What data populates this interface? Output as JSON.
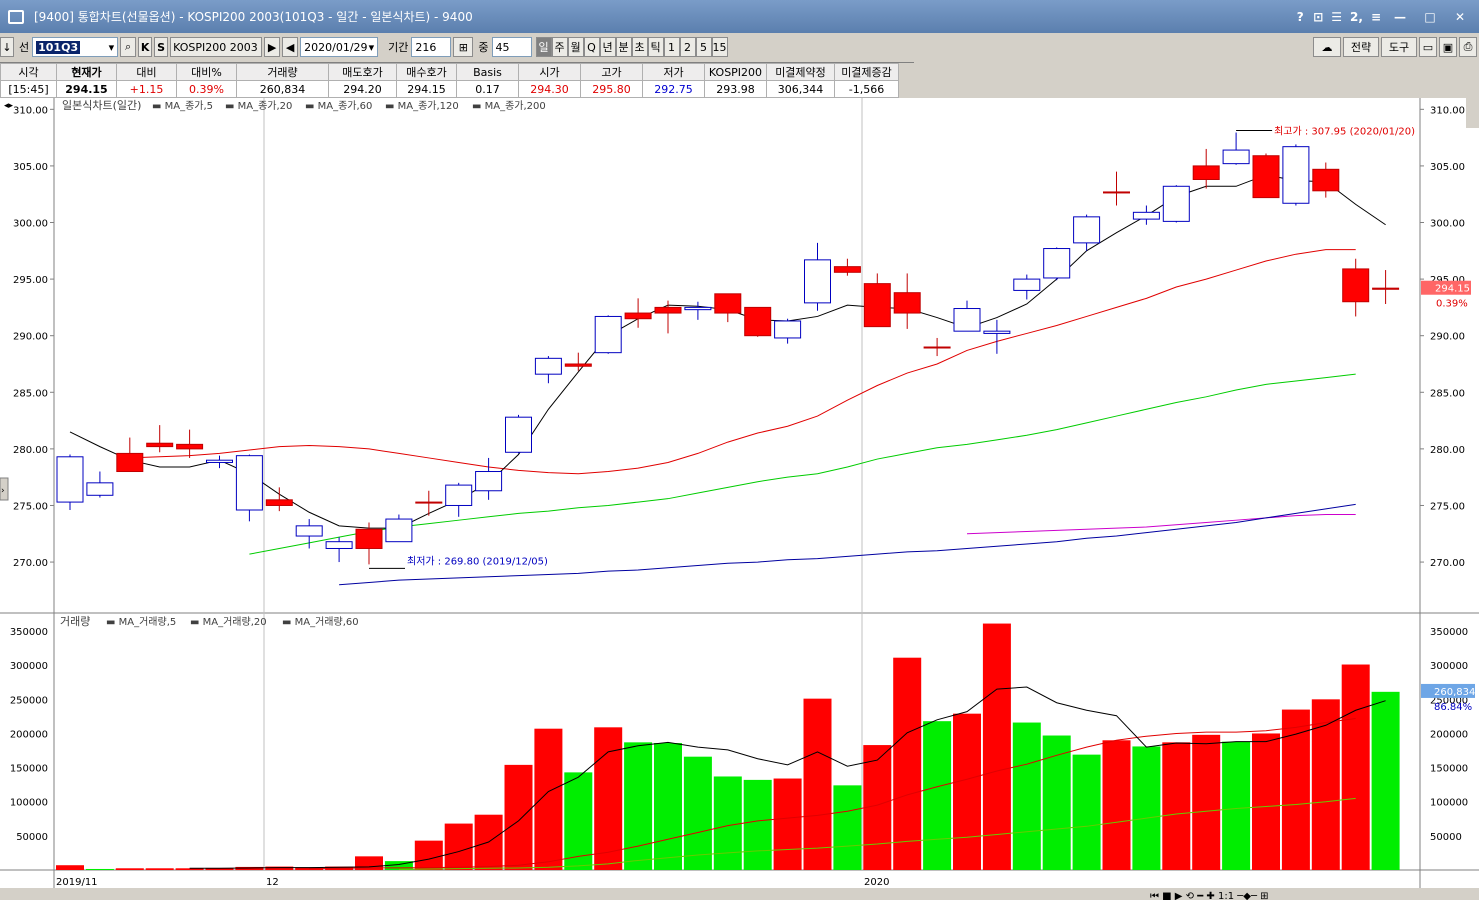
{
  "window": {
    "title": "[9400] 통합차트(선물옵션) - KOSPI200 2003(101Q3 - 일간 - 일본식차트) - 9400",
    "controls": [
      "?",
      "⊡",
      "☰",
      "2,",
      "≡"
    ],
    "win_buttons": [
      "—",
      "□",
      "✕"
    ]
  },
  "toolbar": {
    "arrow": "↓",
    "select_label": "선",
    "code": "101Q3",
    "k": "K",
    "s": "S",
    "name": "KOSPI200 2003",
    "date": "2020/01/29",
    "period_label": "기간",
    "period": "216",
    "mid_label": "중",
    "mid": "45",
    "periods": [
      "일",
      "주",
      "월",
      "Q",
      "년",
      "분",
      "초",
      "틱",
      "1",
      "2",
      "5",
      "15"
    ],
    "active_period": "일",
    "strategy": "전략",
    "tools": "도구"
  },
  "quote_table": {
    "headers": [
      "시각",
      "현재가",
      "대비",
      "대비%",
      "거래량",
      "매도호가",
      "매수호가",
      "Basis",
      "시가",
      "고가",
      "저가",
      "KOSPI200",
      "미결제약정",
      "미결제증감"
    ],
    "values": [
      "[15:45]",
      "294.15",
      "+1.15",
      "0.39%",
      "260,834",
      "294.20",
      "294.15",
      "0.17",
      "294.30",
      "295.80",
      "292.75",
      "293.98",
      "306,344",
      "-1,566"
    ]
  },
  "price_legend": {
    "title": "일본식차트(일간)",
    "ma": [
      "MA_종가,5",
      "MA_종가,20",
      "MA_종가,60",
      "MA_종가,120",
      "MA_종가,200"
    ],
    "colors": [
      "#000000",
      "#e00000",
      "#00cc00",
      "#0000a0",
      "#cc00cc"
    ]
  },
  "volume_legend": {
    "title": "거래량",
    "ma": [
      "MA_거래량,5",
      "MA_거래량,20",
      "MA_거래량,60"
    ],
    "colors": [
      "#000000",
      "#e00000",
      "#66cc00"
    ]
  },
  "annotations": {
    "high": "최고가 : 307.95 (2020/01/20)",
    "low": "최저가 : 269.80 (2019/12/05)"
  },
  "current": {
    "price": "294.15",
    "pct": "0.39%",
    "volume": "260,834",
    "vol_pct": "86.84%"
  },
  "x_labels": [
    "2019/11",
    "12",
    "2020"
  ],
  "chart_data": [
    {
      "type": "candlestick",
      "y_ticks": [
        270,
        275,
        280,
        285,
        290,
        295,
        300,
        305,
        310
      ],
      "ylim": [
        265.5,
        311
      ],
      "candles": [
        {
          "o": 279.3,
          "h": 279.5,
          "l": 274.6,
          "c": 275.3
        },
        {
          "o": 277.0,
          "h": 278.0,
          "l": 275.7,
          "c": 275.9
        },
        {
          "o": 278.0,
          "h": 281.0,
          "l": 278.0,
          "c": 279.6
        },
        {
          "o": 280.2,
          "h": 282.1,
          "l": 279.7,
          "c": 280.5
        },
        {
          "o": 280.0,
          "h": 281.7,
          "l": 279.2,
          "c": 280.4
        },
        {
          "o": 279.0,
          "h": 279.4,
          "l": 278.3,
          "c": 278.8
        },
        {
          "o": 279.4,
          "h": 279.5,
          "l": 273.6,
          "c": 274.6
        },
        {
          "o": 275.0,
          "h": 276.6,
          "l": 274.5,
          "c": 275.5
        },
        {
          "o": 273.2,
          "h": 273.8,
          "l": 271.2,
          "c": 272.3
        },
        {
          "o": 271.8,
          "h": 272.2,
          "l": 270.0,
          "c": 271.2
        },
        {
          "o": 271.2,
          "h": 273.5,
          "l": 269.8,
          "c": 272.9
        },
        {
          "o": 273.8,
          "h": 274.2,
          "l": 271.8,
          "c": 271.8
        },
        {
          "o": 275.3,
          "h": 276.3,
          "l": 274.1,
          "c": 275.3
        },
        {
          "o": 276.8,
          "h": 277.0,
          "l": 274.0,
          "c": 275.0
        },
        {
          "o": 278.0,
          "h": 279.2,
          "l": 275.5,
          "c": 276.3
        },
        {
          "o": 282.8,
          "h": 283.0,
          "l": 279.6,
          "c": 279.7
        },
        {
          "o": 288.0,
          "h": 288.2,
          "l": 285.8,
          "c": 286.6
        },
        {
          "o": 287.3,
          "h": 288.5,
          "l": 286.9,
          "c": 287.5
        },
        {
          "o": 291.7,
          "h": 291.8,
          "l": 288.4,
          "c": 288.5
        },
        {
          "o": 291.5,
          "h": 293.3,
          "l": 290.7,
          "c": 292.0
        },
        {
          "o": 292.0,
          "h": 293.1,
          "l": 290.2,
          "c": 292.5
        },
        {
          "o": 292.5,
          "h": 293.0,
          "l": 291.4,
          "c": 292.3
        },
        {
          "o": 292.0,
          "h": 293.7,
          "l": 291.2,
          "c": 293.7
        },
        {
          "o": 290.0,
          "h": 292.5,
          "l": 289.9,
          "c": 292.5
        },
        {
          "o": 291.3,
          "h": 291.5,
          "l": 289.3,
          "c": 289.8
        },
        {
          "o": 296.7,
          "h": 298.2,
          "l": 292.2,
          "c": 292.9
        },
        {
          "o": 295.6,
          "h": 296.8,
          "l": 295.3,
          "c": 296.1
        },
        {
          "o": 290.8,
          "h": 295.5,
          "l": 290.8,
          "c": 294.6
        },
        {
          "o": 292.0,
          "h": 295.5,
          "l": 290.6,
          "c": 293.8
        },
        {
          "o": 289.0,
          "h": 289.8,
          "l": 288.2,
          "c": 289.0
        },
        {
          "o": 292.4,
          "h": 293.1,
          "l": 290.4,
          "c": 290.4
        },
        {
          "o": 290.4,
          "h": 291.4,
          "l": 288.4,
          "c": 290.2
        },
        {
          "o": 295.0,
          "h": 295.4,
          "l": 293.2,
          "c": 294.0
        },
        {
          "o": 297.7,
          "h": 297.8,
          "l": 294.9,
          "c": 295.1
        },
        {
          "o": 300.5,
          "h": 300.7,
          "l": 297.5,
          "c": 298.2
        },
        {
          "o": 302.7,
          "h": 304.5,
          "l": 301.5,
          "c": 302.7
        },
        {
          "o": 300.9,
          "h": 301.5,
          "l": 299.8,
          "c": 300.3
        },
        {
          "o": 303.2,
          "h": 303.3,
          "l": 300.0,
          "c": 300.1
        },
        {
          "o": 303.8,
          "h": 306.5,
          "l": 303.0,
          "c": 305.0
        },
        {
          "o": 306.4,
          "h": 307.95,
          "l": 305.1,
          "c": 305.2
        },
        {
          "o": 302.2,
          "h": 306.1,
          "l": 302.2,
          "c": 305.9
        },
        {
          "o": 306.7,
          "h": 306.9,
          "l": 301.5,
          "c": 301.7
        },
        {
          "o": 302.8,
          "h": 305.3,
          "l": 302.2,
          "c": 304.7
        },
        {
          "o": 293.0,
          "h": 296.8,
          "l": 291.7,
          "c": 295.9
        },
        {
          "o": 294.1,
          "h": 295.8,
          "l": 292.8,
          "c": 294.2
        }
      ],
      "ma5": [
        281.5,
        280.2,
        279.0,
        278.4,
        278.4,
        279.0,
        277.8,
        276.0,
        274.4,
        273.2,
        273.0,
        273.0,
        274.3,
        275.5,
        277.0,
        279.5,
        283.5,
        286.8,
        290.0,
        291.5,
        292.7,
        292.6,
        292.3,
        291.4,
        291.3,
        291.7,
        292.7,
        292.5,
        292.4,
        291.6,
        290.7,
        291.6,
        292.8,
        295.0,
        297.5,
        299.1,
        300.6,
        302.3,
        303.2,
        303.2,
        304.2,
        303.7,
        303.6,
        301.6,
        299.8
      ],
      "ma20": [
        279.2,
        279.3,
        279.4,
        279.6,
        279.9,
        280.2,
        280.3,
        280.2,
        280.0,
        279.6,
        279.2,
        278.8,
        278.4,
        278.1,
        277.9,
        277.8,
        278.0,
        278.3,
        278.8,
        279.6,
        280.6,
        281.4,
        282.0,
        282.9,
        284.3,
        285.6,
        286.7,
        287.5,
        288.7,
        289.5,
        290.2,
        290.9,
        291.7,
        292.5,
        293.3,
        294.3,
        295.0,
        295.8,
        296.6,
        297.2,
        297.6,
        297.6
      ],
      "ma60": [
        270.7,
        271.2,
        271.7,
        272.2,
        272.7,
        273.1,
        273.4,
        273.7,
        274.0,
        274.3,
        274.5,
        274.8,
        275.0,
        275.3,
        275.6,
        276.1,
        276.6,
        277.1,
        277.5,
        277.8,
        278.4,
        279.1,
        279.6,
        280.1,
        280.4,
        280.8,
        281.2,
        281.7,
        282.3,
        282.9,
        283.5,
        284.1,
        284.6,
        285.2,
        285.7,
        286.0,
        286.3,
        286.6
      ],
      "ma120": [
        268.0,
        268.2,
        268.4,
        268.5,
        268.6,
        268.7,
        268.8,
        268.9,
        269.0,
        269.2,
        269.3,
        269.5,
        269.7,
        269.9,
        270.0,
        270.2,
        270.3,
        270.5,
        270.7,
        270.9,
        271.0,
        271.2,
        271.4,
        271.6,
        271.8,
        272.1,
        272.3,
        272.6,
        272.9,
        273.2,
        273.5,
        273.9,
        274.3,
        274.7,
        275.1
      ],
      "ma200": [
        272.5,
        272.6,
        272.7,
        272.8,
        272.9,
        273.0,
        273.1,
        273.3,
        273.5,
        273.7,
        273.9,
        274.1,
        274.2,
        274.2
      ]
    },
    {
      "type": "bar",
      "y_ticks": [
        50000,
        100000,
        150000,
        200000,
        250000,
        300000,
        350000
      ],
      "ylim": [
        0,
        375000
      ],
      "values": [
        7000,
        1500,
        2500,
        2500,
        2500,
        3000,
        4500,
        5000,
        4000,
        5000,
        20000,
        13000,
        43000,
        68000,
        81000,
        154000,
        207000,
        143000,
        209000,
        187000,
        186000,
        166000,
        137000,
        132000,
        134000,
        251000,
        124000,
        183000,
        311000,
        218000,
        229000,
        361000,
        216000,
        197000,
        169000,
        190000,
        181000,
        187000,
        198000,
        188000,
        200000,
        235000,
        250000,
        301000,
        261000
      ],
      "up": [
        true,
        false,
        true,
        true,
        true,
        true,
        true,
        true,
        true,
        true,
        true,
        false,
        true,
        true,
        true,
        true,
        true,
        false,
        true,
        false,
        false,
        false,
        false,
        false,
        true,
        true,
        false,
        true,
        true,
        false,
        true,
        true,
        false,
        false,
        false,
        true,
        false,
        true,
        true,
        false,
        true,
        true,
        true,
        true,
        false
      ],
      "ma5": [
        null,
        null,
        null,
        null,
        2500,
        2500,
        3000,
        3500,
        3500,
        4000,
        4500,
        8000,
        16000,
        27000,
        41000,
        72000,
        115000,
        136000,
        173000,
        182000,
        187000,
        180000,
        176000,
        163000,
        154000,
        173000,
        152000,
        161000,
        201000,
        220000,
        232000,
        265000,
        268000,
        245000,
        234000,
        226000,
        180000,
        186000,
        185000,
        188000,
        188000,
        199000,
        212000,
        234000,
        248000
      ],
      "ma20": [
        2000,
        2500,
        3000,
        3200,
        3500,
        4000,
        5000,
        7000,
        12000,
        20000,
        26000,
        35000,
        45000,
        55000,
        65000,
        72000,
        76000,
        80000,
        86000,
        95000,
        110000,
        122000,
        133000,
        145000,
        155000,
        168000,
        180000,
        190000,
        196000,
        200000,
        202000,
        202000,
        204000,
        209000,
        216000,
        222000
      ],
      "ma60": [
        1000,
        1500,
        2000,
        2500,
        3000,
        4000,
        6000,
        9000,
        14000,
        18000,
        22000,
        25000,
        28000,
        30000,
        32000,
        35000,
        38000,
        42000,
        45000,
        48000,
        52000,
        56000,
        60000,
        64000,
        70000,
        76000,
        82000,
        86000,
        90000,
        93000,
        96000,
        100000,
        105000
      ]
    }
  ]
}
